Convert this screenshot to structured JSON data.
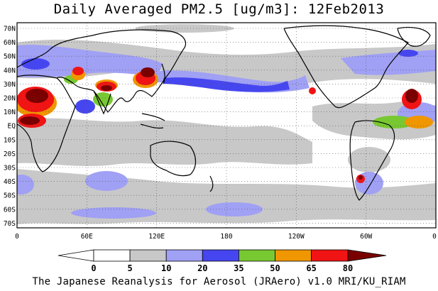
{
  "header": {
    "title": "Daily Averaged PM2.5 [ug/m3]: 12Feb2013"
  },
  "map": {
    "lat_labels": [
      "70N",
      "60N",
      "50N",
      "40N",
      "30N",
      "20N",
      "10N",
      "EQ",
      "10S",
      "20S",
      "30S",
      "40S",
      "50S",
      "60S",
      "70S"
    ],
    "lon_labels": [
      "0",
      "60E",
      "120E",
      "180",
      "120W",
      "60W",
      "0"
    ]
  },
  "colorbar": {
    "ticks": [
      "0",
      "5",
      "10",
      "20",
      "35",
      "50",
      "65",
      "80"
    ],
    "colors": [
      "#ffffff",
      "#c8c8c8",
      "#a0a0f5",
      "#4646f0",
      "#78c832",
      "#f09600",
      "#f01414",
      "#7a0000"
    ]
  },
  "footer": {
    "credit": "The Japanese Reanalysis for Aerosol (JRAero) v1.0 MRI/KU_RIAM"
  }
}
